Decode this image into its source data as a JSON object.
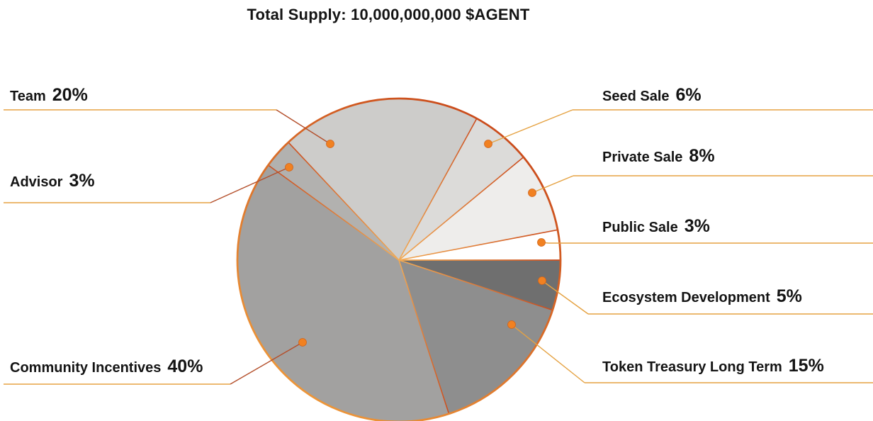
{
  "title": "Total Supply: 10,000,000,000 $AGENT",
  "chart_data": {
    "type": "pie",
    "title": "Total Supply: 10,000,000,000 $AGENT",
    "total_supply": "10,000,000,000",
    "token_symbol": "$AGENT",
    "start_angle_deg": 90,
    "direction": "clockwise",
    "legend_position": "callout-labels",
    "segments": [
      {
        "label": "Ecosystem Development",
        "pct": 5,
        "pct_label": "5%",
        "color": "#6f6f6f",
        "callout_side": "right"
      },
      {
        "label": "Token Treasury Long Term",
        "pct": 15,
        "pct_label": "15%",
        "color": "#8e8e8e",
        "callout_side": "right"
      },
      {
        "label": "Community Incentives",
        "pct": 40,
        "pct_label": "40%",
        "color": "#a2a1a0",
        "callout_side": "left"
      },
      {
        "label": "Advisor",
        "pct": 3,
        "pct_label": "3%",
        "color": "#b2b1af",
        "callout_side": "left"
      },
      {
        "label": "Team",
        "pct": 20,
        "pct_label": "20%",
        "color": "#cdccca",
        "callout_side": "left"
      },
      {
        "label": "Seed Sale",
        "pct": 6,
        "pct_label": "6%",
        "color": "#dcdbd9",
        "callout_side": "right"
      },
      {
        "label": "Private Sale",
        "pct": 8,
        "pct_label": "8%",
        "color": "#eeedeb",
        "callout_side": "right"
      },
      {
        "label": "Public Sale",
        "pct": 3,
        "pct_label": "3%",
        "color": "#ffffff",
        "callout_side": "right"
      }
    ]
  },
  "colors": {
    "background": "#ffffff",
    "text": "#141414",
    "rim_dark": "#c74418",
    "rim_light": "#f09d3c",
    "spoke_inner": "#f2ab55",
    "spoke_outer": "#cb4c1d",
    "leader_orange": "#e5a242",
    "leader_red": "#b44f2b",
    "dot_fill": "#f18121",
    "dot_edge": "#d0641c"
  }
}
